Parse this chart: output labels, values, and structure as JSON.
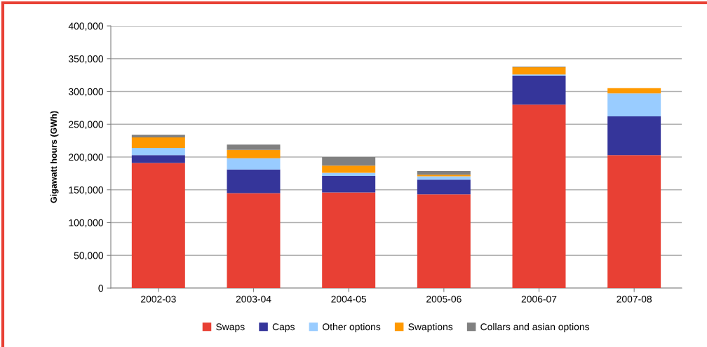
{
  "chart_data": {
    "type": "bar",
    "stacked": true,
    "ylabel": "Gigawatt hours (GWh)",
    "categories": [
      "2002-03",
      "2003-04",
      "2004-05",
      "2005-06",
      "2006-07",
      "2007-08"
    ],
    "series": [
      {
        "name": "Swaps",
        "color": "#e84034",
        "values": [
          191000,
          145000,
          146000,
          143000,
          280000,
          203000
        ]
      },
      {
        "name": "Caps",
        "color": "#35359a",
        "values": [
          12000,
          36000,
          25000,
          22500,
          44000,
          59000
        ]
      },
      {
        "name": "Other options",
        "color": "#99ccff",
        "values": [
          11000,
          17000,
          5000,
          5000,
          2000,
          35000
        ]
      },
      {
        "name": "Swaptions",
        "color": "#ff9900",
        "values": [
          16000,
          13000,
          11000,
          2500,
          11000,
          8000
        ]
      },
      {
        "name": "Collars and asian options",
        "color": "#808080",
        "values": [
          4000,
          8000,
          13000,
          5500,
          1000,
          0
        ]
      }
    ],
    "ylim": [
      0,
      400000
    ],
    "yticks": [
      {
        "value": 0,
        "label": "0"
      },
      {
        "value": 50000,
        "label": "50,000"
      },
      {
        "value": 100000,
        "label": "100,000"
      },
      {
        "value": 150000,
        "label": "150,000"
      },
      {
        "value": 200000,
        "label": "200,000"
      },
      {
        "value": 250000,
        "label": "250,000"
      },
      {
        "value": 300000,
        "label": "300,000"
      },
      {
        "value": 350000,
        "label": "350,000"
      },
      {
        "value": 400000,
        "label": "400,000"
      }
    ],
    "grid": "y",
    "legend": "bottom"
  }
}
